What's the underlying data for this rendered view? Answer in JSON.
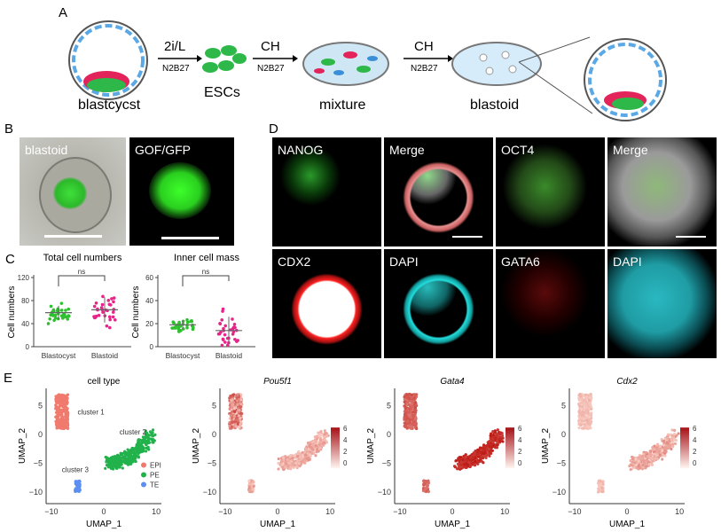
{
  "panel_a": {
    "label": "A",
    "step1_top": "2i/L",
    "step1_bottom": "N2B27",
    "step2_top": "CH",
    "step2_bottom": "N2B27",
    "step3_top": "CH",
    "step3_bottom": "N2B27",
    "stage1": "blastcycst",
    "stage2": "ESCs",
    "stage3": "mixture",
    "stage4": "blastoid"
  },
  "panel_b": {
    "label": "B",
    "tiles": [
      "blastoid",
      "GOF/GFP"
    ]
  },
  "panel_c": {
    "label": "C"
  },
  "panel_d": {
    "label": "D",
    "tiles": [
      "NANOG",
      "Merge",
      "OCT4",
      "Merge",
      "CDX2",
      "DAPI",
      "GATA6",
      "DAPI"
    ]
  },
  "panel_e": {
    "label": "E",
    "titles": [
      "cell type",
      "Pou5f1",
      "Gata4",
      "Cdx2"
    ],
    "xlabel": "UMAP_1",
    "ylabel": "UMAP_2",
    "clusters": [
      "cluster 1",
      "cluster 2",
      "cluster 3"
    ],
    "legend": [
      "EPI",
      "PE",
      "TE"
    ],
    "legend_colors": [
      "#f07a6e",
      "#22b24c",
      "#5b8ff0"
    ],
    "scale_ticks": [
      "6",
      "4",
      "2",
      "0"
    ]
  },
  "chart_data": [
    {
      "type": "scatter",
      "title": "Total cell numbers",
      "ylabel": "Cell numbers",
      "categories": [
        "Blastocyst",
        "Blastoid"
      ],
      "ylim": [
        0,
        120
      ],
      "yticks": [
        "120",
        "80",
        "40",
        "0"
      ],
      "means": [
        59,
        64
      ],
      "annotation": "ns",
      "colors": [
        "#2fc02f",
        "#e8238a"
      ]
    },
    {
      "type": "scatter",
      "title": "Inner cell mass",
      "ylabel": "Cell numbers",
      "categories": [
        "Blastocyst",
        "Blastoid"
      ],
      "ylim": [
        0,
        60
      ],
      "yticks": [
        "60",
        "40",
        "20",
        "0"
      ],
      "means": [
        19,
        14
      ],
      "annotation": "ns",
      "colors": [
        "#2fc02f",
        "#e8238a"
      ]
    }
  ]
}
